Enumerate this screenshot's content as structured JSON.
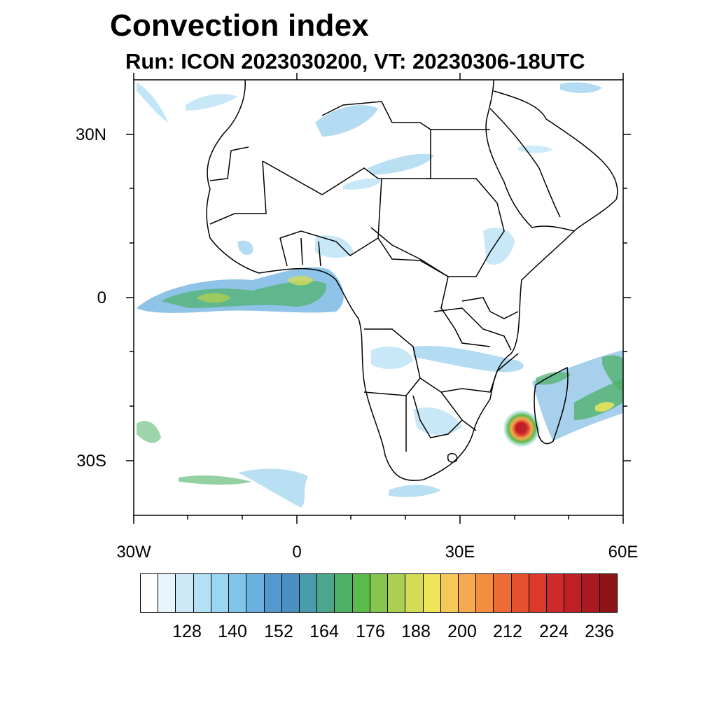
{
  "title": "Convection index",
  "subtitle": "Run: ICON 2023030200,  VT: 20230306-18UTC",
  "map": {
    "projection": "cylindrical-equidistant",
    "lon_range": [
      -30,
      60
    ],
    "lat_range": [
      -40,
      40
    ],
    "y_ticks": [
      {
        "label": "30N",
        "lat": 30
      },
      {
        "label": "0",
        "lat": 0
      },
      {
        "label": "30S",
        "lat": -30
      }
    ],
    "x_ticks": [
      {
        "label": "30W",
        "lon": -30
      },
      {
        "label": "0",
        "lon": 0
      },
      {
        "label": "30E",
        "lon": 30
      },
      {
        "label": "60E",
        "lon": 60
      }
    ],
    "features": "Africa with country borders; convection bands over Gulf of Guinea/equatorial Atlantic and tropical cyclone near Madagascar"
  },
  "colorbar": {
    "labels": [
      "128",
      "140",
      "152",
      "164",
      "176",
      "188",
      "200",
      "212",
      "224",
      "236"
    ],
    "colors": [
      "#ffffff",
      "#e8f5fc",
      "#cde9f8",
      "#b4e0f6",
      "#9ad5f2",
      "#80c4ea",
      "#6ab0e0",
      "#5498cf",
      "#4a8fc2",
      "#4a9bab",
      "#4aa78e",
      "#4cb066",
      "#5bbb4a",
      "#86c44e",
      "#aacf52",
      "#d2dc56",
      "#efe45a",
      "#f6c957",
      "#f6a94f",
      "#f48d42",
      "#ee6b36",
      "#e5502e",
      "#dc3a2c",
      "#cf2a2a",
      "#be2026",
      "#a9191f",
      "#8d1518"
    ]
  }
}
